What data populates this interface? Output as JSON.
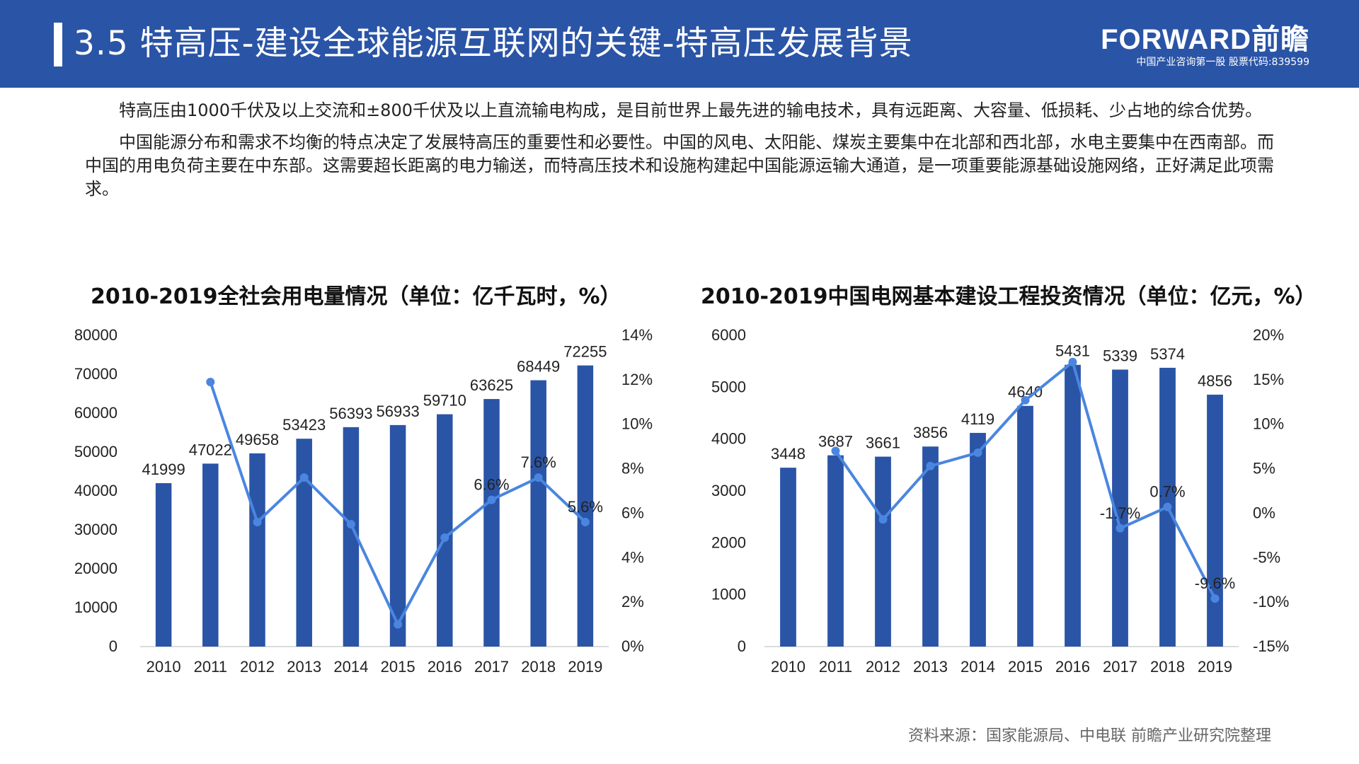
{
  "header": {
    "title": "3.5 特高压-建设全球能源互联网的关键-特高压发展背景",
    "brand_name": "FORWARD前瞻",
    "brand_sub": "中国产业咨询第一股  股票代码:839599"
  },
  "intro": {
    "p1": "特高压由1000千伏及以上交流和±800千伏及以上直流输电构成，是目前世界上最先进的输电技术，具有远距离、大容量、低损耗、少占地的综合优势。",
    "p2": "中国能源分布和需求不均衡的特点决定了发展特高压的重要性和必要性。中国的风电、太阳能、煤炭主要集中在北部和西北部，水电主要集中在西南部。而中国的用电负荷主要在中东部。这需要超长距离的电力输送，而特高压技术和设施构建起中国能源运输大通道，是一项重要能源基础设施网络，正好满足此项需求。"
  },
  "source": "资料来源：国家能源局、中电联 前瞻产业研究院整理",
  "colors": {
    "header_bg": "#2a54a6",
    "bar": "#2a54a6",
    "line": "#4a86e0"
  },
  "chart_data": [
    {
      "type": "bar",
      "title": "2010-2019全社会用电量情况（单位：亿千瓦时，%）",
      "categories": [
        "2010",
        "2011",
        "2012",
        "2013",
        "2014",
        "2015",
        "2016",
        "2017",
        "2018",
        "2019"
      ],
      "series": [
        {
          "values": [
            41999,
            47022,
            49658,
            53423,
            56393,
            56933,
            59710,
            63625,
            68449,
            72255
          ],
          "axis": "left",
          "kind": "bar",
          "labels": [
            "41999",
            "47022",
            "49658",
            "53423",
            "56393",
            "56933",
            "59710",
            "63625",
            "68449",
            "72255"
          ]
        },
        {
          "values": [
            null,
            11.9,
            5.6,
            7.6,
            5.5,
            1.0,
            4.9,
            6.6,
            7.6,
            5.6
          ],
          "axis": "right",
          "kind": "line",
          "labels": [
            null,
            null,
            null,
            null,
            null,
            null,
            null,
            "6.6%",
            "7.6%",
            "5.6%"
          ]
        }
      ],
      "ylim": [
        0,
        80000
      ],
      "yticks": [
        "80000",
        "70000",
        "60000",
        "50000",
        "40000",
        "30000",
        "20000",
        "10000",
        "0"
      ],
      "y2lim": [
        0,
        14
      ],
      "y2ticks": [
        "14%",
        "12%",
        "10%",
        "8%",
        "6%",
        "4%",
        "2%",
        "0%"
      ]
    },
    {
      "type": "bar",
      "title": "2010-2019中国电网基本建设工程投资情况（单位：亿元，%）",
      "categories": [
        "2010",
        "2011",
        "2012",
        "2013",
        "2014",
        "2015",
        "2016",
        "2017",
        "2018",
        "2019"
      ],
      "series": [
        {
          "values": [
            3448,
            3687,
            3661,
            3856,
            4119,
            4640,
            5431,
            5339,
            5374,
            4856
          ],
          "axis": "left",
          "kind": "bar",
          "labels": [
            "3448",
            "3687",
            "3661",
            "3856",
            "4119",
            "4640",
            "5431",
            "5339",
            "5374",
            "4856"
          ]
        },
        {
          "values": [
            null,
            7.0,
            -0.7,
            5.3,
            6.8,
            12.7,
            17.0,
            -1.7,
            0.7,
            -9.6
          ],
          "axis": "right",
          "kind": "line",
          "labels": [
            null,
            null,
            null,
            null,
            null,
            null,
            null,
            "-1.7%",
            "0.7%",
            "-9.6%"
          ]
        }
      ],
      "ylim": [
        0,
        6000
      ],
      "yticks": [
        "6000",
        "5000",
        "4000",
        "3000",
        "2000",
        "1000",
        "0"
      ],
      "y2lim": [
        -15,
        20
      ],
      "y2ticks": [
        "20%",
        "15%",
        "10%",
        "5%",
        "0%",
        "-5%",
        "-10%",
        "-15%"
      ]
    }
  ]
}
